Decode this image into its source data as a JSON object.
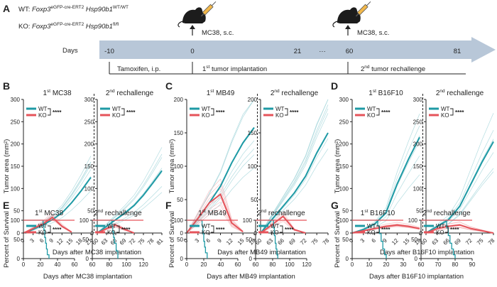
{
  "colors": {
    "wt": "#1e9aa5",
    "ko": "#e5535a",
    "wt_light": "#9fd3d8",
    "ko_light": "#f3b3b6",
    "arrow": "#b8c7d8",
    "axis": "#222222"
  },
  "icons": [
    "mouse-icon",
    "syringe-icon"
  ],
  "panelA": {
    "letter": "A",
    "wt_genotype": {
      "prefix": "WT: ",
      "gene1": "Foxp3",
      "sup1": "eGFP-cre-ERT2",
      "gene2": " Hsp90b1",
      "sup2": "WT/WT"
    },
    "ko_genotype": {
      "prefix": "KO: ",
      "gene1": "Foxp3",
      "sup1": "eGFP-cre-ERT2",
      "gene2": " Hsp90b1",
      "sup2": "fl/fl"
    },
    "injection1": "MC38, s.c.",
    "injection2": "MC38, s.c.",
    "days_label": "Days",
    "timeline_days": [
      "-10",
      "0",
      "21",
      "···",
      "60",
      "81"
    ],
    "phase1": "Tamoxifen, i.p.",
    "phase2": {
      "pre": "1",
      "sup": "st",
      "post": " tumor implantation"
    },
    "phase3": {
      "pre": "2",
      "sup": "nd",
      "post": " tumor rechallenge"
    }
  },
  "chart_data": [
    {
      "panel": "B",
      "type": "line",
      "xlabel": "Days after MC38 implantation",
      "ylabel": "Tumor area (mm²)",
      "ylim": [
        0,
        300
      ],
      "yticks": [
        0,
        50,
        100,
        150,
        200,
        250,
        300
      ],
      "significance": "****",
      "legend": [
        "WT",
        "KO"
      ],
      "subplots": [
        {
          "title_pre": "1",
          "title_sup": "st",
          "title_post": " MC38",
          "xlim": [
            0,
            21
          ],
          "xticks": [
            "0",
            "3",
            "6",
            "9",
            "12",
            "15",
            "18",
            "21"
          ],
          "series": [
            {
              "name": "WT",
              "x": [
                0,
                3,
                6,
                9,
                12,
                15,
                18,
                21
              ],
              "y": [
                0,
                8,
                18,
                30,
                45,
                68,
                95,
                125
              ]
            },
            {
              "name": "KO",
              "x": [
                0,
                3,
                6,
                9,
                12,
                15
              ],
              "y": [
                0,
                10,
                20,
                35,
                15,
                2
              ]
            }
          ]
        },
        {
          "title_pre": "2",
          "title_sup": "nd",
          "title_post": " rechallenge",
          "xlim": [
            60,
            81
          ],
          "xticks": [
            "60",
            "63",
            "66",
            "69",
            "72",
            "75",
            "78",
            "81"
          ],
          "series": [
            {
              "name": "WT",
              "x": [
                60,
                63,
                66,
                69,
                72,
                75,
                78,
                81
              ],
              "y": [
                0,
                15,
                30,
                45,
                62,
                85,
                112,
                140
              ]
            },
            {
              "name": "KO",
              "x": [
                60,
                63,
                66,
                69,
                72
              ],
              "y": [
                0,
                10,
                18,
                8,
                0
              ]
            }
          ]
        }
      ]
    },
    {
      "panel": "C",
      "type": "line",
      "xlabel": "Days after MB49 implantation",
      "ylabel": "Tumor area (mm²)",
      "ylim": [
        0,
        200
      ],
      "yticks": [
        0,
        50,
        100,
        150,
        200
      ],
      "significance": "****",
      "legend": [
        "WT",
        "KO"
      ],
      "subplots": [
        {
          "title_pre": "1",
          "title_sup": "st",
          "title_post": " MB49",
          "xlim": [
            0,
            18
          ],
          "xticks": [
            "0",
            "3",
            "6",
            "9",
            "12",
            "15",
            "18"
          ],
          "series": [
            {
              "name": "WT",
              "x": [
                0,
                3,
                6,
                9,
                12,
                15,
                18
              ],
              "y": [
                0,
                22,
                45,
                70,
                105,
                135,
                158
              ]
            },
            {
              "name": "KO",
              "x": [
                0,
                3,
                6,
                9,
                12,
                15
              ],
              "y": [
                0,
                22,
                45,
                58,
                15,
                2
              ]
            }
          ]
        },
        {
          "title_pre": "2",
          "title_sup": "nd",
          "title_post": " rechallenge",
          "xlim": [
            60,
            78
          ],
          "xticks": [
            "60",
            "63",
            "66",
            "69",
            "72",
            "75",
            "78"
          ],
          "series": [
            {
              "name": "WT",
              "x": [
                60,
                63,
                66,
                69,
                72,
                75,
                78
              ],
              "y": [
                0,
                20,
                40,
                60,
                85,
                120,
                150
              ]
            },
            {
              "name": "KO",
              "x": [
                60,
                63,
                66,
                69,
                72
              ],
              "y": [
                0,
                12,
                25,
                5,
                0
              ]
            }
          ]
        }
      ]
    },
    {
      "panel": "D",
      "type": "line",
      "xlabel": "Days after B16F10 implantation",
      "ylabel": "Tumor area (mm²)",
      "ylim": [
        0,
        300
      ],
      "yticks": [
        0,
        50,
        100,
        150,
        200,
        250,
        300
      ],
      "significance": "****",
      "legend": [
        "WT",
        "KO"
      ],
      "subplots": [
        {
          "title_pre": "1",
          "title_sup": "st",
          "title_post": " B16F10",
          "xlim": [
            0,
            18
          ],
          "xticks": [
            "0",
            "3",
            "6",
            "9",
            "12",
            "15",
            "18"
          ],
          "series": [
            {
              "name": "WT",
              "x": [
                0,
                3,
                6,
                9,
                12,
                15,
                18
              ],
              "y": [
                0,
                8,
                20,
                45,
                110,
                165,
                215
              ]
            },
            {
              "name": "KO",
              "x": [
                0,
                3,
                6,
                9,
                12,
                15,
                18
              ],
              "y": [
                0,
                5,
                10,
                15,
                18,
                15,
                10
              ]
            }
          ]
        },
        {
          "title_pre": "2",
          "title_sup": "nd",
          "title_post": " rechallenge",
          "xlim": [
            60,
            78
          ],
          "xticks": [
            "60",
            "63",
            "66",
            "69",
            "72",
            "75",
            "78"
          ],
          "series": [
            {
              "name": "WT",
              "x": [
                60,
                63,
                66,
                69,
                72,
                75,
                78
              ],
              "y": [
                0,
                15,
                30,
                60,
                110,
                160,
                205
              ]
            },
            {
              "name": "KO",
              "x": [
                60,
                63,
                66,
                69,
                72,
                75,
                78
              ],
              "y": [
                0,
                10,
                15,
                18,
                10,
                5,
                0
              ]
            }
          ]
        }
      ]
    },
    {
      "panel": "E",
      "type": "line",
      "xlabel": "Days after MC38 implantation",
      "ylabel": "Percent of Survival",
      "ylim": [
        0,
        100
      ],
      "yticks": [
        0,
        50,
        100
      ],
      "significance": "****",
      "legend": [
        "WT",
        "KO"
      ],
      "subplots": [
        {
          "title_pre": "1",
          "title_sup": "st",
          "title_post": " MC38",
          "xlim": [
            0,
            60
          ],
          "xticks": [
            "0",
            "20",
            "40",
            "60"
          ],
          "series": [
            {
              "name": "WT",
              "x": [
                0,
                22,
                23,
                24,
                25,
                26,
                27,
                28,
                30
              ],
              "y": [
                100,
                100,
                90,
                75,
                55,
                40,
                25,
                10,
                0
              ]
            },
            {
              "name": "KO",
              "x": [
                0,
                60
              ],
              "y": [
                100,
                100
              ]
            }
          ]
        },
        {
          "title_pre": "2",
          "title_sup": "nd",
          "title_post": " rechallenge",
          "xlim": [
            60,
            120
          ],
          "xticks": [
            "60",
            "80",
            "100",
            "120"
          ],
          "series": [
            {
              "name": "WT",
              "x": [
                60,
                82,
                83,
                84,
                85,
                86,
                88,
                90
              ],
              "y": [
                100,
                100,
                85,
                70,
                55,
                40,
                20,
                0
              ]
            },
            {
              "name": "KO",
              "x": [
                60,
                120
              ],
              "y": [
                100,
                100
              ]
            }
          ]
        }
      ]
    },
    {
      "panel": "F",
      "type": "line",
      "xlabel": "Days after MB49 implantation",
      "ylabel": "Percent of Survival",
      "ylim": [
        0,
        100
      ],
      "yticks": [
        0,
        50,
        100
      ],
      "significance": "****",
      "legend": [
        "WT",
        "KO"
      ],
      "subplots": [
        {
          "title_pre": "1",
          "title_sup": "st",
          "title_post": " MB49",
          "xlim": [
            0,
            60
          ],
          "xticks": [
            "0",
            "20",
            "40",
            "60"
          ],
          "series": [
            {
              "name": "WT",
              "x": [
                0,
                17,
                18,
                19,
                20,
                21,
                22,
                24
              ],
              "y": [
                100,
                100,
                85,
                65,
                45,
                30,
                15,
                0
              ]
            },
            {
              "name": "KO",
              "x": [
                0,
                60
              ],
              "y": [
                100,
                100
              ]
            }
          ]
        },
        {
          "title_pre": "2",
          "title_sup": "nd",
          "title_post": " rechallenge",
          "xlim": [
            60,
            120
          ],
          "xticks": [
            "60",
            "80",
            "100",
            "120"
          ],
          "series": [
            {
              "name": "WT",
              "x": [
                60,
                80,
                81,
                82,
                83,
                84,
                85,
                86
              ],
              "y": [
                100,
                100,
                80,
                60,
                40,
                25,
                10,
                0
              ]
            },
            {
              "name": "KO",
              "x": [
                60,
                120
              ],
              "y": [
                100,
                100
              ]
            }
          ]
        }
      ]
    },
    {
      "panel": "G",
      "type": "line",
      "xlabel": "Days after B16F10 implantation",
      "ylabel": "Percent of Survival",
      "ylim": [
        0,
        100
      ],
      "yticks": [
        0,
        50,
        100
      ],
      "significance": "****",
      "legend": [
        "WT",
        "KO"
      ],
      "subplots": [
        {
          "title_pre": "1",
          "title_sup": "st",
          "title_post": " B16F10",
          "xlim": [
            0,
            30
          ],
          "xticks": [
            "0",
            "10",
            "20",
            "30"
          ],
          "series": [
            {
              "name": "WT",
              "x": [
                0,
                14,
                15,
                16,
                17,
                18,
                19,
                20
              ],
              "y": [
                100,
                100,
                85,
                65,
                45,
                25,
                10,
                0
              ]
            },
            {
              "name": "KO",
              "x": [
                0,
                30
              ],
              "y": [
                100,
                100
              ]
            }
          ]
        },
        {
          "title_pre": "2",
          "title_sup": "nd",
          "title_post": " rechallenge",
          "xlim": [
            60,
            90
          ],
          "xticks": [
            "60",
            "70",
            "80",
            "90"
          ],
          "series": [
            {
              "name": "WT",
              "x": [
                60,
                74,
                75,
                76,
                77,
                78,
                79,
                80
              ],
              "y": [
                100,
                100,
                80,
                60,
                40,
                25,
                10,
                0
              ]
            },
            {
              "name": "KO",
              "x": [
                60,
                90
              ],
              "y": [
                100,
                100
              ]
            }
          ]
        }
      ]
    }
  ]
}
